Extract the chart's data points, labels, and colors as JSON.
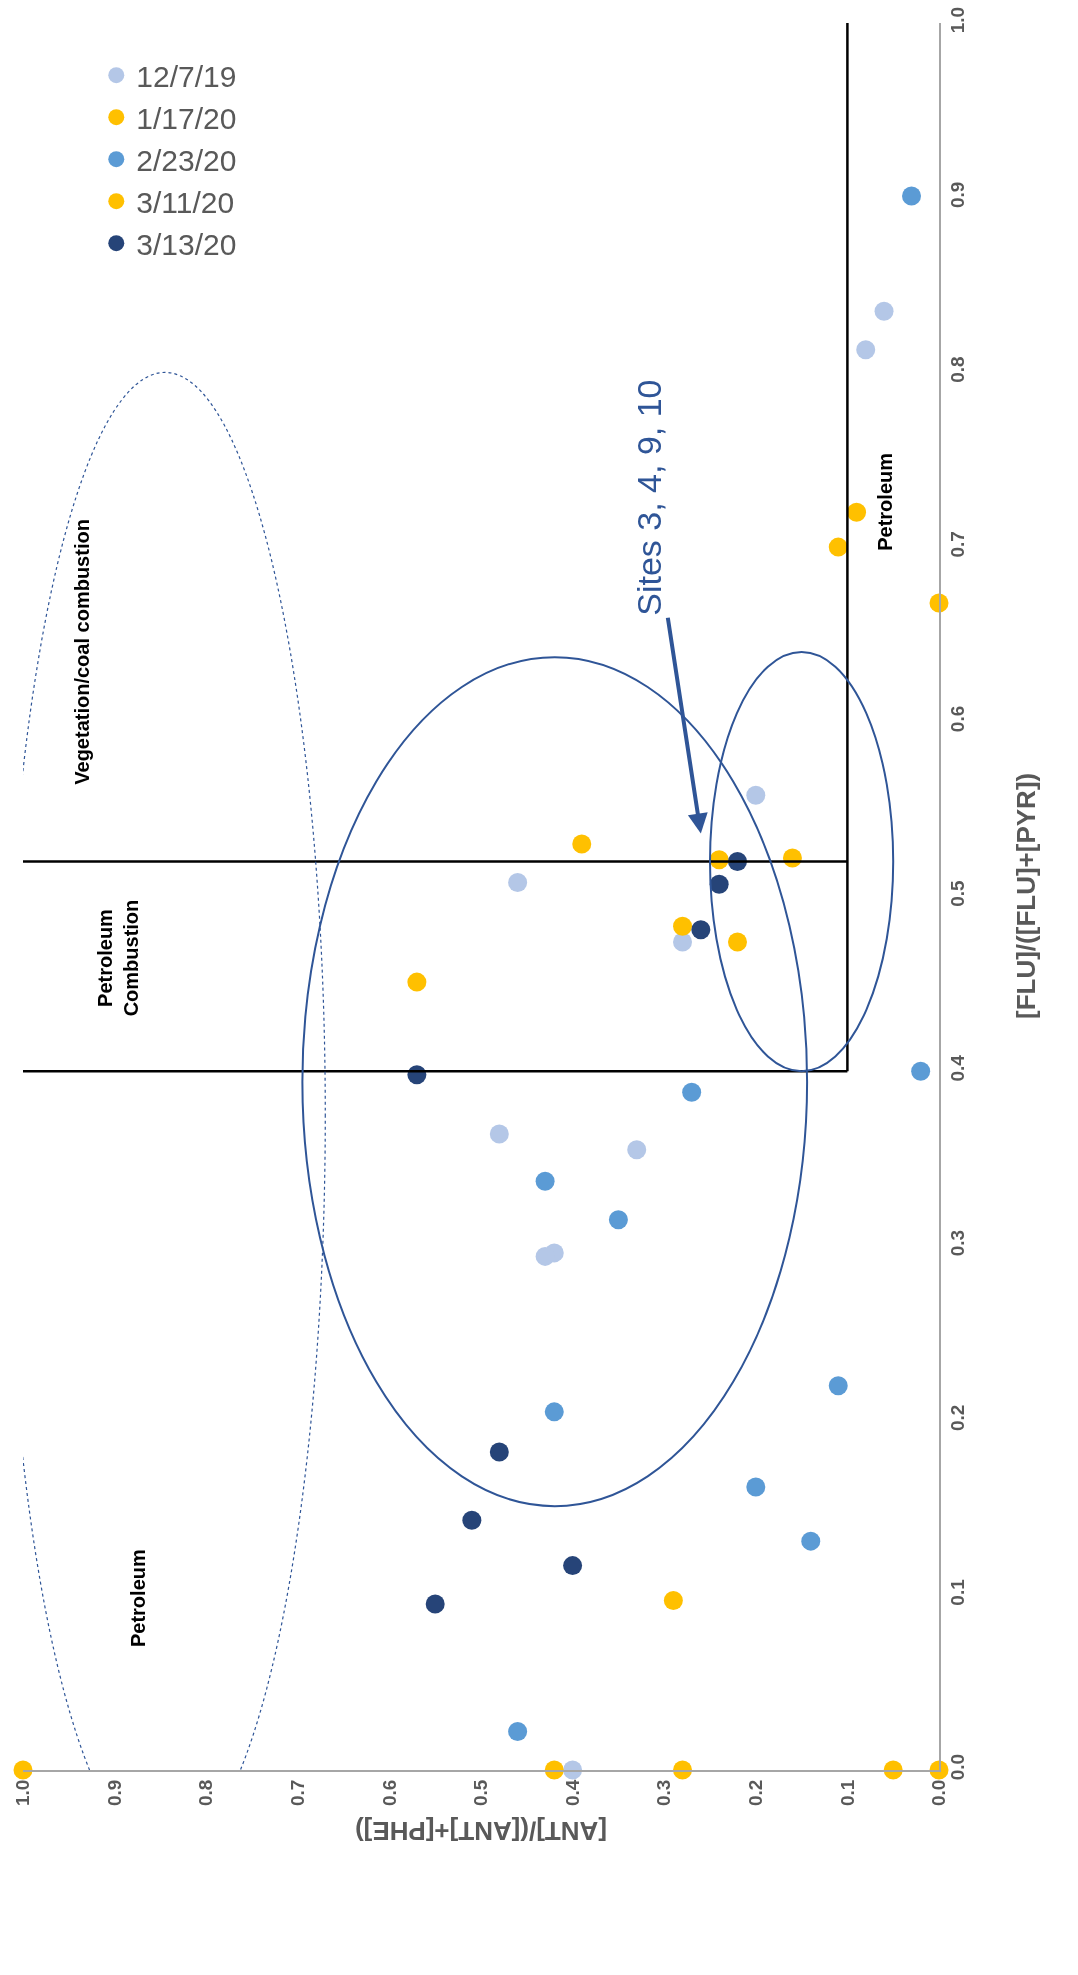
{
  "chart_data": {
    "type": "scatter",
    "xlabel": "[ANT]/([ANT]+[PHE])",
    "ylabel": "[FLU]/([FLU]+[PYR])",
    "xlim": [
      1,
      0
    ],
    "ylim": [
      0,
      1
    ],
    "xticks": [
      {
        "value": 0,
        "label": "0.0"
      },
      0.1,
      0.2,
      0.3,
      0.4,
      0.5,
      0.6,
      0.7,
      0.8,
      0.9,
      {
        "value": 1,
        "label": "1.0"
      }
    ],
    "yticks": [
      {
        "value": 0,
        "label": "0.0"
      },
      0.1,
      0.2,
      0.3,
      0.4,
      0.5,
      0.6,
      0.7,
      0.8,
      0.9,
      {
        "value": 1,
        "label": "1.0"
      }
    ],
    "grid": false,
    "legend": "top left",
    "marker": "circle",
    "series": [
      {
        "name": "12/7/19",
        "color": "#b4c7e7",
        "values": [
          0,
          0.474,
          0.508,
          0.558,
          0.364,
          0.355,
          0.296,
          0.294,
          0.813,
          0.835
        ],
        "x": [
          0.4,
          0.28,
          0.46,
          0.2,
          0.48,
          0.33,
          0.42,
          0.43,
          0.08,
          0.06
        ]
      },
      {
        "name": "1/17/20",
        "color": "#ffc000",
        "values": [
          0,
          0,
          0,
          0,
          0,
          0.097,
          0.451
        ],
        "x": [
          1.0,
          0.42,
          0.28,
          0.05,
          0.0,
          0.29,
          0.57
        ]
      },
      {
        "name": "2/23/20",
        "color": "#5b9bd5",
        "values": [
          0.901,
          0.4,
          0.388,
          0.337,
          0.315,
          0.205,
          0.22,
          0.162,
          0.131,
          0.022
        ],
        "x": [
          0.03,
          0.02,
          0.27,
          0.43,
          0.35,
          0.42,
          0.11,
          0.2,
          0.14,
          0.46
        ]
      },
      {
        "name": "3/11/20",
        "color": "#ffc000",
        "values": [
          0.53,
          0.483,
          0.521,
          0.474,
          0.522,
          0.7,
          0.72,
          0.668
        ],
        "x": [
          0.39,
          0.28,
          0.24,
          0.22,
          0.16,
          0.11,
          0.09,
          0.0
        ]
      },
      {
        "name": "3/13/20",
        "color": "#264478",
        "values": [
          0.398,
          0.52,
          0.507,
          0.481,
          0.182,
          0.143,
          0.117,
          0.095
        ],
        "x": [
          0.57,
          0.22,
          0.24,
          0.26,
          0.48,
          0.51,
          0.4,
          0.55
        ]
      }
    ],
    "ref_lines": [
      {
        "axis": "y",
        "value": 0.4,
        "label": null,
        "color": "#000000"
      },
      {
        "axis": "y",
        "value": 0.52,
        "label": null,
        "color": "#000000"
      },
      {
        "axis": "x",
        "value": 0.1,
        "label": null,
        "color": "#000000"
      }
    ],
    "annotations": [
      "Petroleum",
      "Petroleum\nCombustion",
      "Vegetation/coal combustion",
      "Petroleum",
      "Sites 3, 4, 9, 10"
    ]
  }
}
